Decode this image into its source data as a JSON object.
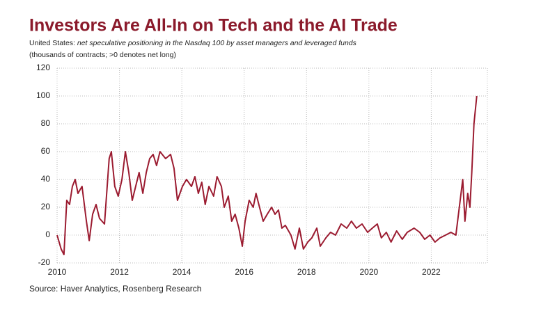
{
  "chart_data": {
    "type": "line",
    "title": "Investors Are All-In on Tech and the AI Trade",
    "subtitle_prefix": "United States: ",
    "subtitle": "net speculative positioning in the Nasdaq 100 by asset managers and leveraged funds",
    "units_note": "(thousands of contracts; >0 denotes net long)",
    "source": "Source: Haver Analytics, Rosenberg Research",
    "x": [
      2010.0,
      2010.13,
      2010.22,
      2010.31,
      2010.4,
      2010.49,
      2010.58,
      2010.67,
      2010.8,
      2010.94,
      2011.03,
      2011.14,
      2011.25,
      2011.36,
      2011.52,
      2011.67,
      2011.74,
      2011.85,
      2011.96,
      2012.08,
      2012.19,
      2012.3,
      2012.41,
      2012.52,
      2012.63,
      2012.75,
      2012.86,
      2012.97,
      2013.08,
      2013.19,
      2013.3,
      2013.48,
      2013.64,
      2013.75,
      2013.86,
      2014.02,
      2014.15,
      2014.31,
      2014.42,
      2014.53,
      2014.64,
      2014.75,
      2014.87,
      2015.02,
      2015.13,
      2015.27,
      2015.36,
      2015.49,
      2015.6,
      2015.71,
      2015.83,
      2015.94,
      2016.03,
      2016.16,
      2016.29,
      2016.38,
      2016.47,
      2016.61,
      2016.74,
      2016.88,
      2016.99,
      2017.1,
      2017.21,
      2017.32,
      2017.5,
      2017.63,
      2017.77,
      2017.9,
      2018.04,
      2018.17,
      2018.33,
      2018.44,
      2018.62,
      2018.77,
      2018.93,
      2019.11,
      2019.29,
      2019.44,
      2019.6,
      2019.78,
      2019.96,
      2020.11,
      2020.27,
      2020.4,
      2020.56,
      2020.71,
      2020.89,
      2021.07,
      2021.23,
      2021.45,
      2021.63,
      2021.79,
      2021.96,
      2022.12,
      2022.28,
      2022.46,
      2022.63,
      2022.79,
      2022.9,
      2023.01,
      2023.08,
      2023.17,
      2023.24,
      2023.3,
      2023.37,
      2023.46
    ],
    "series": [
      {
        "name": "Net speculative positioning",
        "color": "#9b1b30",
        "values": [
          0,
          -10,
          -14,
          25,
          22,
          35,
          40,
          30,
          35,
          10,
          -4,
          15,
          22,
          12,
          8,
          55,
          60,
          35,
          28,
          40,
          60,
          45,
          25,
          35,
          45,
          30,
          45,
          55,
          58,
          50,
          60,
          55,
          58,
          48,
          25,
          35,
          40,
          35,
          42,
          30,
          38,
          22,
          35,
          28,
          42,
          35,
          20,
          28,
          10,
          15,
          5,
          -8,
          10,
          25,
          20,
          30,
          22,
          10,
          15,
          20,
          15,
          18,
          5,
          7,
          0,
          -10,
          5,
          -10,
          -5,
          -2,
          5,
          -8,
          -2,
          2,
          0,
          8,
          5,
          10,
          5,
          8,
          2,
          5,
          8,
          -2,
          2,
          -5,
          3,
          -3,
          2,
          5,
          2,
          -3,
          0,
          -5,
          -2,
          0,
          2,
          0,
          20,
          40,
          10,
          30,
          20,
          45,
          80,
          100
        ]
      }
    ],
    "xlim": [
      2010,
      2023.8
    ],
    "xticks": [
      2010,
      2012,
      2014,
      2016,
      2018,
      2020,
      2022
    ],
    "ylim": [
      -20,
      120
    ],
    "yticks": [
      -20,
      0,
      20,
      40,
      60,
      80,
      100,
      120
    ],
    "grid": true
  }
}
